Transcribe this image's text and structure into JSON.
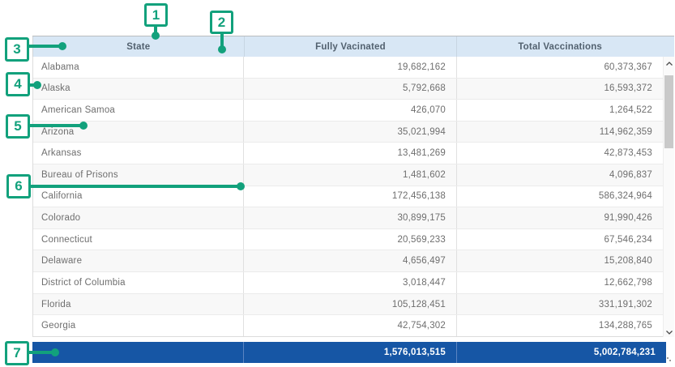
{
  "table": {
    "columns": [
      {
        "label": "State"
      },
      {
        "label": "Fully Vacinated"
      },
      {
        "label": "Total Vaccinations"
      }
    ],
    "rows": [
      {
        "state": "Alabama",
        "fully_vaccinated": "19,682,162",
        "total_vaccinations": "60,373,367"
      },
      {
        "state": "Alaska",
        "fully_vaccinated": "5,792,668",
        "total_vaccinations": "16,593,372"
      },
      {
        "state": "American Samoa",
        "fully_vaccinated": "426,070",
        "total_vaccinations": "1,264,522"
      },
      {
        "state": "Arizona",
        "fully_vaccinated": "35,021,994",
        "total_vaccinations": "114,962,359"
      },
      {
        "state": "Arkansas",
        "fully_vaccinated": "13,481,269",
        "total_vaccinations": "42,873,453"
      },
      {
        "state": "Bureau of Prisons",
        "fully_vaccinated": "1,481,602",
        "total_vaccinations": "4,096,837"
      },
      {
        "state": "California",
        "fully_vaccinated": "172,456,138",
        "total_vaccinations": "586,324,964"
      },
      {
        "state": "Colorado",
        "fully_vaccinated": "30,899,175",
        "total_vaccinations": "91,990,426"
      },
      {
        "state": "Connecticut",
        "fully_vaccinated": "20,569,233",
        "total_vaccinations": "67,546,234"
      },
      {
        "state": "Delaware",
        "fully_vaccinated": "4,656,497",
        "total_vaccinations": "15,208,840"
      },
      {
        "state": "District of Columbia",
        "fully_vaccinated": "3,018,447",
        "total_vaccinations": "12,662,798"
      },
      {
        "state": "Florida",
        "fully_vaccinated": "105,128,451",
        "total_vaccinations": "331,191,302"
      },
      {
        "state": "Georgia",
        "fully_vaccinated": "42,754,302",
        "total_vaccinations": "134,288,765"
      }
    ],
    "totals_row": {
      "state": "",
      "fully_vaccinated": "1,576,013,515",
      "total_vaccinations": "5,002,784,231"
    }
  },
  "annotations": {
    "callouts": [
      "1",
      "2",
      "3",
      "4",
      "5",
      "6",
      "7"
    ]
  },
  "colors": {
    "header_bg": "#d8e7f5",
    "header_text": "#52616f",
    "row_bg": "#ffffff",
    "row_alt_bg": "#f8f8f8",
    "row_text": "#6e6e6e",
    "grid_line": "#e0e0e0",
    "totals_bg": "#1656a5",
    "totals_text": "#ffffff",
    "callout_accent": "#12a17c",
    "scrollbar_thumb": "#c9c9c9"
  },
  "icons": {
    "scroll_up": "chevron-up",
    "scroll_down": "chevron-down"
  }
}
